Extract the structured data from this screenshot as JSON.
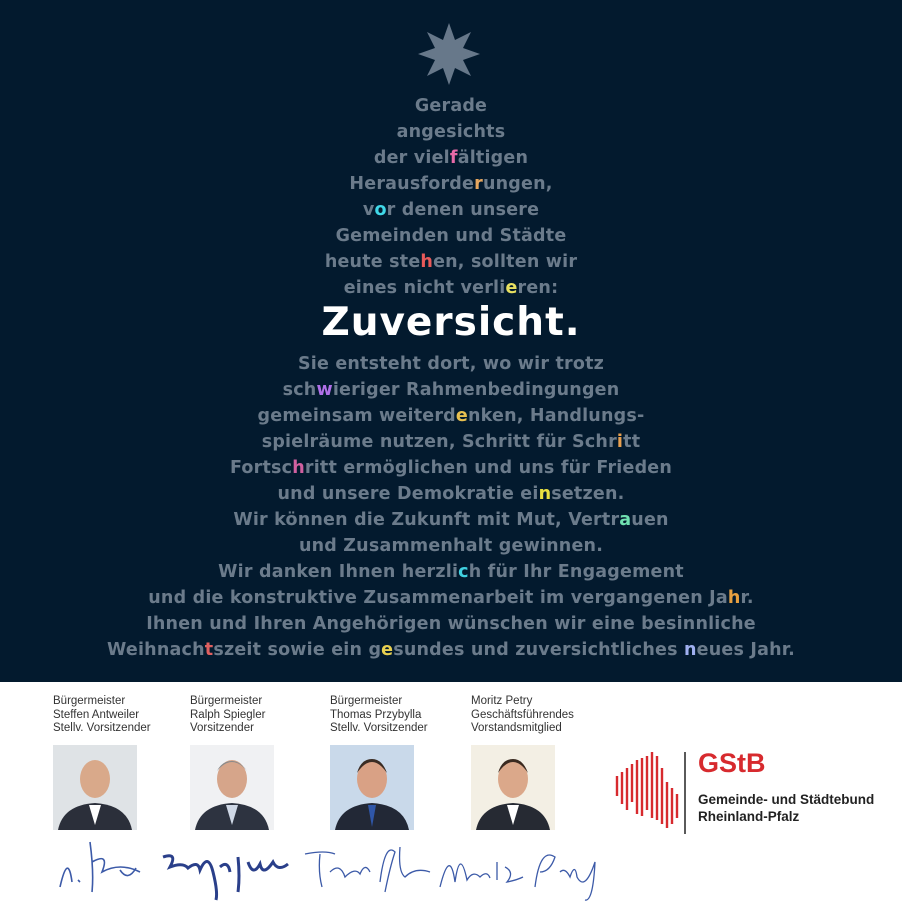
{
  "colors": {
    "background": "#031a2e",
    "text": "#6b7b8b",
    "brand_red": "#d72a2e"
  },
  "poem": [
    {
      "pre": "Gerade",
      "hl": "",
      "post": "",
      "color": ""
    },
    {
      "pre": "angesichts",
      "hl": "",
      "post": "",
      "color": ""
    },
    {
      "pre": "der viel",
      "hl": "f",
      "post": "ältigen",
      "color": "#e86aa8"
    },
    {
      "pre": "Herausforde",
      "hl": "r",
      "post": "ungen,",
      "color": "#e8a860"
    },
    {
      "pre": "v",
      "hl": "o",
      "post": "r denen unsere",
      "color": "#40d8e8"
    },
    {
      "pre": "Gemeinden und Städte",
      "hl": "",
      "post": "",
      "color": ""
    },
    {
      "pre": "heute ste",
      "hl": "h",
      "post": "en, sollten wir",
      "color": "#e85a5a"
    },
    {
      "pre": "eines nicht verli",
      "hl": "e",
      "post": "ren:",
      "color": "#e8e060"
    }
  ],
  "headline": "Zuversicht.",
  "poem2": [
    {
      "pre": "Sie entsteht dort, wo wir trotz",
      "hl": "",
      "post": "",
      "color": ""
    },
    {
      "pre": "sch",
      "hl": "w",
      "post": "ieriger Rahmenbedingungen",
      "color": "#b070e8"
    },
    {
      "pre": "gemeinsam weiterd",
      "hl": "e",
      "post": "nken, Handlungs-",
      "color": "#e8c050"
    },
    {
      "pre": "spielräume nutzen, Schritt für Schr",
      "hl": "i",
      "post": "tt",
      "color": "#e8a050"
    },
    {
      "pre": "Fortsc",
      "hl": "h",
      "post": "ritt ermöglichen und uns für Frieden",
      "color": "#d060a0"
    },
    {
      "pre": "und unsere Demokratie ei",
      "hl": "n",
      "post": "setzen.",
      "color": "#e8e040"
    },
    {
      "pre": "Wir können die Zukunft mit Mut, Vertr",
      "hl": "a",
      "post": "uen",
      "color": "#70e0b0"
    },
    {
      "pre": "und Zusammenhalt gewinnen.",
      "hl": "",
      "post": "",
      "color": ""
    },
    {
      "pre": "Wir danken Ihnen herzli",
      "hl": "c",
      "post": "h für Ihr Engagement",
      "color": "#40d0e0"
    },
    {
      "pre": "und die konstruktive Zusammenarbeit im vergangenen Ja",
      "hl": "h",
      "post": "r.",
      "color": "#e8a040"
    },
    {
      "pre": "Ihnen und Ihren Angehörigen wünschen wir eine besinnliche",
      "hl": "",
      "post": "",
      "color": ""
    },
    {
      "pre": "Weihnach",
      "hl": "t",
      "post": "szeit sowie ein g",
      "color": "#e06060",
      "hl2": "e",
      "post2": "sundes und zuversichtliches ",
      "color2": "#e8d050",
      "hl3": "n",
      "post3": "eues Jahr.",
      "color3": "#a0b0f0"
    }
  ],
  "team": [
    {
      "role": "Bürgermeister",
      "name": "Steffen Antweiler",
      "title": "Stellv. Vorsitzender"
    },
    {
      "role": "Bürgermeister",
      "name": "Ralph Spiegler",
      "title": "Vorsitzender"
    },
    {
      "role": "Bürgermeister",
      "name": "Thomas Przybylla",
      "title": "Stellv. Vorsitzender"
    },
    {
      "role": "Moritz Petry",
      "name": "Geschäftsführendes",
      "title": "Vorstandsmitglied"
    }
  ],
  "logo": {
    "abbr": "GStB",
    "line1": "Gemeinde- und Städtebund",
    "line2": "Rheinland-Pfalz"
  }
}
